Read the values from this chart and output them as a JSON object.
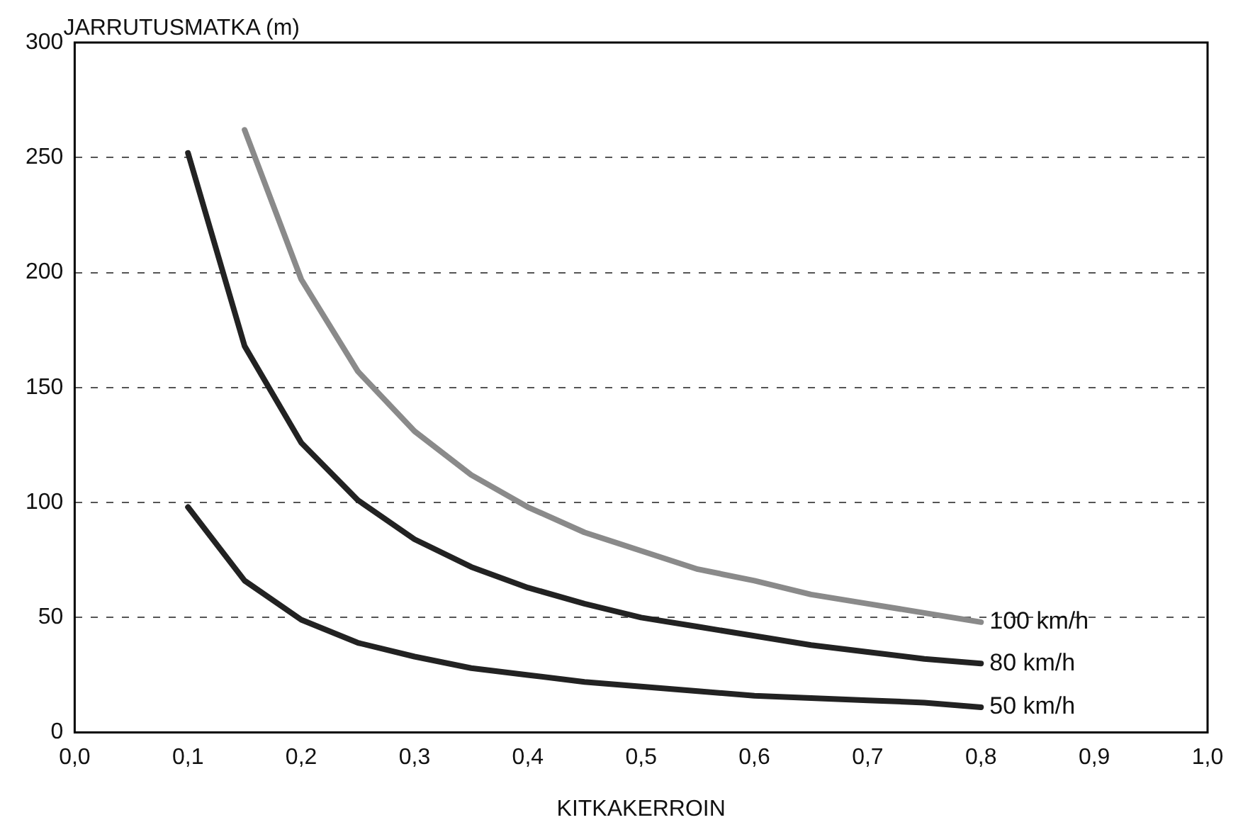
{
  "chart_data": {
    "type": "line",
    "ylabel": "JARRUTUSMATKA (m)",
    "xlabel": "KITKAKERROIN",
    "xlim": [
      0,
      1
    ],
    "xticks": [
      {
        "value": 0,
        "label": "0,0"
      },
      {
        "value": 0.1,
        "label": "0,1"
      },
      {
        "value": 0.2,
        "label": "0,2"
      },
      {
        "value": 0.3,
        "label": "0,3"
      },
      {
        "value": 0.4,
        "label": "0,4"
      },
      {
        "value": 0.5,
        "label": "0,5"
      },
      {
        "value": 0.6,
        "label": "0,6"
      },
      {
        "value": 0.7,
        "label": "0,7"
      },
      {
        "value": 0.8,
        "label": "0,8"
      },
      {
        "value": 0.9,
        "label": "0,9"
      },
      {
        "value": 1,
        "label": "1,0"
      }
    ],
    "ylim": [
      0,
      300
    ],
    "yticks": [
      0,
      50,
      100,
      150,
      200,
      250,
      300
    ],
    "grid": "y",
    "legend": false,
    "marker": "none",
    "line_style": "solid",
    "series": [
      {
        "name": "100 km/h",
        "color": "#8a8a8a",
        "x": [
          0.15,
          0.2,
          0.25,
          0.3,
          0.35,
          0.4,
          0.45,
          0.5,
          0.55,
          0.6,
          0.65,
          0.7,
          0.75,
          0.8
        ],
        "values": [
          262,
          197,
          157,
          131,
          112,
          98,
          87,
          79,
          71,
          66,
          60,
          56,
          52,
          48
        ]
      },
      {
        "name": "80 km/h",
        "color": "#222222",
        "x": [
          0.1,
          0.15,
          0.2,
          0.25,
          0.3,
          0.35,
          0.4,
          0.45,
          0.5,
          0.55,
          0.6,
          0.65,
          0.7,
          0.75,
          0.8
        ],
        "values": [
          252,
          168,
          126,
          101,
          84,
          72,
          63,
          56,
          50,
          46,
          42,
          38,
          35,
          32,
          30
        ]
      },
      {
        "name": "50 km/h",
        "color": "#222222",
        "x": [
          0.1,
          0.15,
          0.2,
          0.25,
          0.3,
          0.35,
          0.4,
          0.45,
          0.5,
          0.55,
          0.6,
          0.65,
          0.7,
          0.75,
          0.8
        ],
        "values": [
          98,
          66,
          49,
          39,
          33,
          28,
          25,
          22,
          20,
          18,
          16,
          15,
          14,
          13,
          11
        ]
      }
    ]
  }
}
